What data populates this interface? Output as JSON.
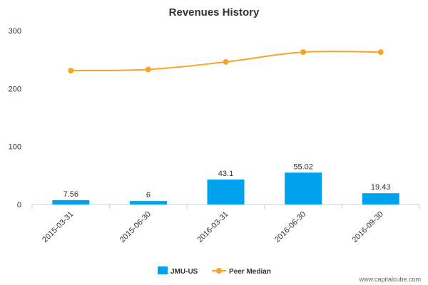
{
  "chart_data": {
    "type": "bar",
    "title": "Revenues History",
    "categories": [
      "2015-03-31",
      "2015-06-30",
      "2016-03-31",
      "2016-06-30",
      "2016-09-30"
    ],
    "series": [
      {
        "name": "JMU-US",
        "type": "bar",
        "values": [
          7.56,
          6,
          43.1,
          55.02,
          19.43
        ],
        "labels": [
          "7.56",
          "6",
          "43.1",
          "55.02",
          "19.43"
        ],
        "color": "#00a2ed"
      },
      {
        "name": "Peer Median",
        "type": "line",
        "values": [
          231,
          233,
          246,
          263,
          263
        ],
        "color": "#f5a623"
      }
    ],
    "yticks": [
      "300",
      "200",
      "100",
      "0"
    ],
    "ytick_values": [
      300,
      200,
      100,
      0
    ],
    "ylim": [
      0,
      300
    ],
    "grid": false,
    "legend_position": "bottom"
  },
  "watermark": "www.capitalcube.com"
}
